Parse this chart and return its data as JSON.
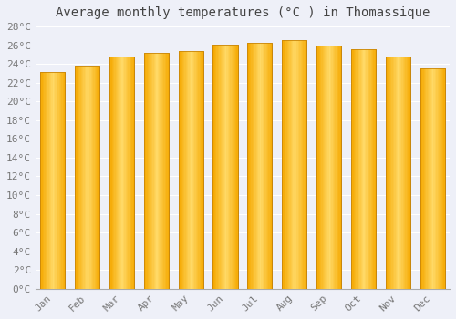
{
  "title": "Average monthly temperatures (°C ) in Thomassique",
  "months": [
    "Jan",
    "Feb",
    "Mar",
    "Apr",
    "May",
    "Jun",
    "Jul",
    "Aug",
    "Sep",
    "Oct",
    "Nov",
    "Dec"
  ],
  "values": [
    23.1,
    23.8,
    24.8,
    25.2,
    25.4,
    26.1,
    26.3,
    26.5,
    26.0,
    25.6,
    24.8,
    23.5
  ],
  "bar_color_left": "#F5A800",
  "bar_color_center": "#FFD966",
  "bar_color_right": "#E89000",
  "bar_border_color": "#C8860A",
  "ylim": [
    0,
    28
  ],
  "yticks": [
    0,
    2,
    4,
    6,
    8,
    10,
    12,
    14,
    16,
    18,
    20,
    22,
    24,
    26,
    28
  ],
  "background_color": "#EEF0F8",
  "plot_bg_color": "#EEF0F8",
  "grid_color": "#ffffff",
  "title_fontsize": 10,
  "tick_fontsize": 8,
  "tick_color": "#777777",
  "title_color": "#444444",
  "font_family": "monospace"
}
